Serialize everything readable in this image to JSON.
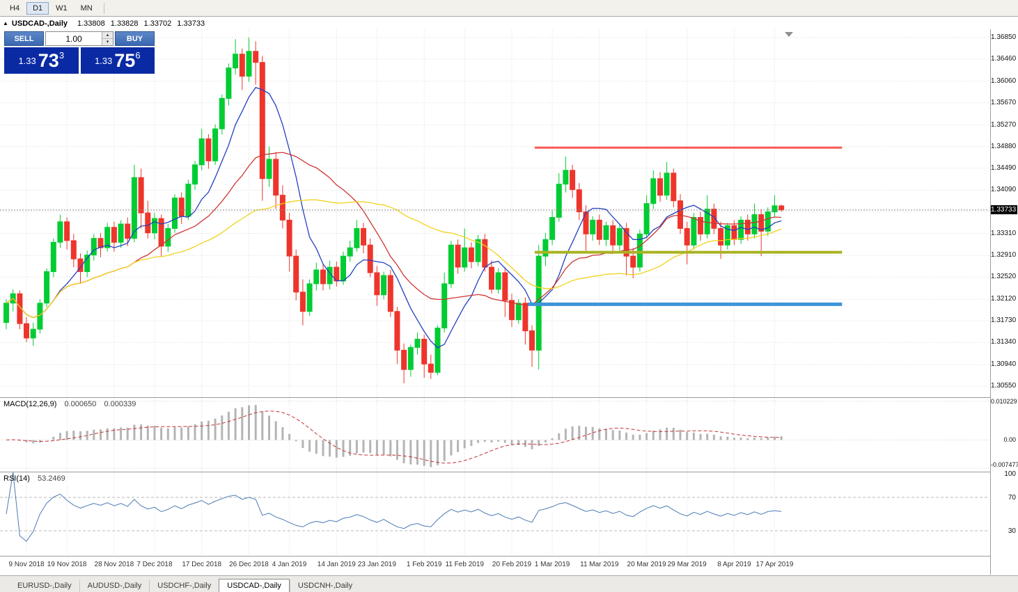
{
  "toolbar": {
    "timeframes": [
      {
        "label": "H4",
        "active": false
      },
      {
        "label": "D1",
        "active": true
      },
      {
        "label": "W1",
        "active": false
      },
      {
        "label": "MN",
        "active": false
      }
    ]
  },
  "window": {
    "symbol": "USDCAD-,Daily",
    "open": "1.33808",
    "high": "1.33828",
    "low": "1.33702",
    "close": "1.33733"
  },
  "trade_panel": {
    "sell_label": "SELL",
    "buy_label": "BUY",
    "volume": "1.00",
    "sell_price": {
      "prefix": "1.33",
      "big": "73",
      "sup": "3"
    },
    "buy_price": {
      "prefix": "1.33",
      "big": "75",
      "sup": "6"
    }
  },
  "chart_data": {
    "type": "candlestick",
    "symbol": "USDCAD-,Daily",
    "current_price": "1.33733",
    "price_axis": {
      "min": 1.3035,
      "max": 1.37,
      "labels": [
        1.3685,
        1.3646,
        1.3606,
        1.3567,
        1.3527,
        1.3488,
        1.3449,
        1.3409,
        1.337,
        1.3331,
        1.3291,
        1.3252,
        1.3212,
        1.3173,
        1.3134,
        1.3094,
        1.3055
      ]
    },
    "date_labels": [
      {
        "index": 3,
        "label": "9 Nov 2018"
      },
      {
        "index": 9,
        "label": "19 Nov 2018"
      },
      {
        "index": 16,
        "label": "28 Nov 2018"
      },
      {
        "index": 22,
        "label": "7 Dec 2018"
      },
      {
        "index": 29,
        "label": "17 Dec 2018"
      },
      {
        "index": 36,
        "label": "26 Dec 2018"
      },
      {
        "index": 42,
        "label": "4 Jan 2019"
      },
      {
        "index": 49,
        "label": "14 Jan 2019"
      },
      {
        "index": 55,
        "label": "23 Jan 2019"
      },
      {
        "index": 62,
        "label": "1 Feb 2019"
      },
      {
        "index": 68,
        "label": "11 Feb 2019"
      },
      {
        "index": 75,
        "label": "20 Feb 2019"
      },
      {
        "index": 81,
        "label": "1 Mar 2019"
      },
      {
        "index": 88,
        "label": "11 Mar 2019"
      },
      {
        "index": 95,
        "label": "20 Mar 2019"
      },
      {
        "index": 101,
        "label": "29 Mar 2019"
      },
      {
        "index": 108,
        "label": "8 Apr 2019"
      },
      {
        "index": 114,
        "label": "17 Apr 2019"
      }
    ],
    "candles": [
      [
        1.317,
        1.3212,
        1.3158,
        1.3205
      ],
      [
        1.3205,
        1.323,
        1.319,
        1.3222
      ],
      [
        1.3222,
        1.3228,
        1.3158,
        1.3168
      ],
      [
        1.3168,
        1.318,
        1.3135,
        1.3142
      ],
      [
        1.3142,
        1.317,
        1.3128,
        1.3158
      ],
      [
        1.3158,
        1.3212,
        1.315,
        1.3205
      ],
      [
        1.3205,
        1.3268,
        1.3198,
        1.3262
      ],
      [
        1.3262,
        1.3322,
        1.3252,
        1.3315
      ],
      [
        1.3315,
        1.3365,
        1.3305,
        1.3352
      ],
      [
        1.3352,
        1.336,
        1.3302,
        1.3318
      ],
      [
        1.3318,
        1.333,
        1.327,
        1.3285
      ],
      [
        1.3285,
        1.3295,
        1.324,
        1.3262
      ],
      [
        1.3262,
        1.33,
        1.3252,
        1.3292
      ],
      [
        1.3292,
        1.333,
        1.3282,
        1.3322
      ],
      [
        1.3322,
        1.3332,
        1.3288,
        1.3305
      ],
      [
        1.3305,
        1.335,
        1.3298,
        1.3342
      ],
      [
        1.3342,
        1.3352,
        1.3298,
        1.3315
      ],
      [
        1.3315,
        1.3355,
        1.3305,
        1.3348
      ],
      [
        1.3348,
        1.336,
        1.3308,
        1.3322
      ],
      [
        1.3322,
        1.3455,
        1.3315,
        1.3432
      ],
      [
        1.3432,
        1.3448,
        1.334,
        1.3368
      ],
      [
        1.3368,
        1.339,
        1.3322,
        1.3332
      ],
      [
        1.3332,
        1.3368,
        1.332,
        1.3358
      ],
      [
        1.3358,
        1.3365,
        1.329,
        1.3308
      ],
      [
        1.3308,
        1.3348,
        1.3298,
        1.334
      ],
      [
        1.334,
        1.3402,
        1.3332,
        1.3395
      ],
      [
        1.3395,
        1.3405,
        1.3348,
        1.3362
      ],
      [
        1.3362,
        1.3428,
        1.3355,
        1.342
      ],
      [
        1.342,
        1.3462,
        1.341,
        1.3455
      ],
      [
        1.3455,
        1.352,
        1.3445,
        1.3502
      ],
      [
        1.3502,
        1.351,
        1.3448,
        1.3462
      ],
      [
        1.3462,
        1.3528,
        1.3455,
        1.352
      ],
      [
        1.352,
        1.3582,
        1.351,
        1.3575
      ],
      [
        1.3575,
        1.3638,
        1.3562,
        1.363
      ],
      [
        1.363,
        1.3682,
        1.3618,
        1.3655
      ],
      [
        1.3655,
        1.3665,
        1.359,
        1.3615
      ],
      [
        1.3615,
        1.3685,
        1.3605,
        1.366
      ],
      [
        1.366,
        1.3678,
        1.36,
        1.364
      ],
      [
        1.364,
        1.3652,
        1.339,
        1.343
      ],
      [
        1.343,
        1.3488,
        1.3415,
        1.3465
      ],
      [
        1.3465,
        1.3478,
        1.3375,
        1.34
      ],
      [
        1.34,
        1.3418,
        1.334,
        1.3355
      ],
      [
        1.3355,
        1.3368,
        1.3262,
        1.329
      ],
      [
        1.329,
        1.3302,
        1.321,
        1.3225
      ],
      [
        1.3225,
        1.3248,
        1.3165,
        1.319
      ],
      [
        1.319,
        1.3248,
        1.3182,
        1.324
      ],
      [
        1.324,
        1.3278,
        1.3228,
        1.3265
      ],
      [
        1.3265,
        1.3275,
        1.3228,
        1.324
      ],
      [
        1.324,
        1.3282,
        1.323,
        1.327
      ],
      [
        1.327,
        1.328,
        1.3235,
        1.3245
      ],
      [
        1.3245,
        1.3298,
        1.3238,
        1.329
      ],
      [
        1.329,
        1.3318,
        1.328,
        1.3305
      ],
      [
        1.3305,
        1.3355,
        1.3298,
        1.334
      ],
      [
        1.334,
        1.335,
        1.3295,
        1.331
      ],
      [
        1.331,
        1.3322,
        1.3252,
        1.326
      ],
      [
        1.326,
        1.3272,
        1.32,
        1.322
      ],
      [
        1.322,
        1.3262,
        1.3212,
        1.3255
      ],
      [
        1.3255,
        1.3265,
        1.318,
        1.319
      ],
      [
        1.319,
        1.3198,
        1.3095,
        1.312
      ],
      [
        1.312,
        1.3132,
        1.306,
        1.3085
      ],
      [
        1.3085,
        1.313,
        1.3072,
        1.3125
      ],
      [
        1.3125,
        1.3152,
        1.3112,
        1.314
      ],
      [
        1.314,
        1.3148,
        1.307,
        1.3095
      ],
      [
        1.3095,
        1.3112,
        1.3068,
        1.308
      ],
      [
        1.308,
        1.3165,
        1.3075,
        1.316
      ],
      [
        1.316,
        1.326,
        1.3152,
        1.324
      ],
      [
        1.324,
        1.3318,
        1.3232,
        1.331
      ],
      [
        1.331,
        1.332,
        1.3258,
        1.327
      ],
      [
        1.327,
        1.334,
        1.3262,
        1.3305
      ],
      [
        1.3305,
        1.3315,
        1.3268,
        1.328
      ],
      [
        1.328,
        1.3328,
        1.3272,
        1.332
      ],
      [
        1.332,
        1.333,
        1.3262,
        1.327
      ],
      [
        1.327,
        1.3282,
        1.3222,
        1.323
      ],
      [
        1.323,
        1.3268,
        1.3222,
        1.326
      ],
      [
        1.326,
        1.327,
        1.318,
        1.321
      ],
      [
        1.321,
        1.3222,
        1.3162,
        1.3175
      ],
      [
        1.3175,
        1.3212,
        1.3168,
        1.3205
      ],
      [
        1.3205,
        1.3215,
        1.313,
        1.3155
      ],
      [
        1.3155,
        1.3165,
        1.309,
        1.312
      ],
      [
        1.312,
        1.331,
        1.3085,
        1.329
      ],
      [
        1.329,
        1.3332,
        1.3272,
        1.332
      ],
      [
        1.332,
        1.3372,
        1.331,
        1.336
      ],
      [
        1.336,
        1.344,
        1.3352,
        1.342
      ],
      [
        1.342,
        1.347,
        1.3405,
        1.3445
      ],
      [
        1.3445,
        1.3455,
        1.3395,
        1.341
      ],
      [
        1.341,
        1.3422,
        1.3355,
        1.337
      ],
      [
        1.337,
        1.3382,
        1.33,
        1.333
      ],
      [
        1.333,
        1.3362,
        1.3318,
        1.3355
      ],
      [
        1.3355,
        1.3365,
        1.331,
        1.332
      ],
      [
        1.332,
        1.3352,
        1.3308,
        1.3345
      ],
      [
        1.3345,
        1.3355,
        1.3298,
        1.331
      ],
      [
        1.331,
        1.3348,
        1.33,
        1.334
      ],
      [
        1.334,
        1.335,
        1.3255,
        1.329
      ],
      [
        1.329,
        1.3305,
        1.325,
        1.327
      ],
      [
        1.327,
        1.3338,
        1.3262,
        1.333
      ],
      [
        1.333,
        1.34,
        1.3322,
        1.3385
      ],
      [
        1.3385,
        1.3445,
        1.3375,
        1.343
      ],
      [
        1.343,
        1.3442,
        1.3388,
        1.34
      ],
      [
        1.34,
        1.346,
        1.3392,
        1.344
      ],
      [
        1.344,
        1.3448,
        1.3378,
        1.339
      ],
      [
        1.339,
        1.3402,
        1.333,
        1.334
      ],
      [
        1.334,
        1.3352,
        1.3275,
        1.331
      ],
      [
        1.331,
        1.3368,
        1.3302,
        1.336
      ],
      [
        1.336,
        1.337,
        1.3318,
        1.333
      ],
      [
        1.333,
        1.34,
        1.3322,
        1.3375
      ],
      [
        1.3375,
        1.3385,
        1.333,
        1.334
      ],
      [
        1.334,
        1.3352,
        1.3285,
        1.331
      ],
      [
        1.331,
        1.335,
        1.3302,
        1.3345
      ],
      [
        1.3345,
        1.3355,
        1.331,
        1.332
      ],
      [
        1.332,
        1.3362,
        1.3312,
        1.3355
      ],
      [
        1.3355,
        1.3365,
        1.3318,
        1.333
      ],
      [
        1.333,
        1.3385,
        1.3322,
        1.3365
      ],
      [
        1.3365,
        1.3375,
        1.329,
        1.3335
      ],
      [
        1.3335,
        1.3378,
        1.3326,
        1.337
      ],
      [
        1.337,
        1.34,
        1.336,
        1.3381
      ],
      [
        1.33808,
        1.33828,
        1.33702,
        1.33733
      ]
    ],
    "moving_averages": [
      {
        "period": 8,
        "color": "#2340c0"
      },
      {
        "period": 20,
        "color": "#cf3434"
      },
      {
        "period": 40,
        "color": "#f2d21c"
      }
    ],
    "hlines": [
      {
        "name": "resistance-line",
        "price": 1.3486,
        "from": 78.4,
        "to": 124,
        "width": 3,
        "color": "#fa5b54"
      },
      {
        "name": "support-line",
        "price": 1.3297,
        "from": 78.4,
        "to": 124,
        "width": 4,
        "color": "#a9b322"
      },
      {
        "name": "demand-line",
        "price": 1.3203,
        "from": 77.4,
        "to": 124,
        "width": 5,
        "color": "#3d95d8"
      }
    ],
    "colors": {
      "up": "#00cc33",
      "down": "#ee352c",
      "grid": "#dcdcdc",
      "hist": "#b4b4b4",
      "signal": "#c23535",
      "rsi": "#4a7ab5",
      "price_line": "#8a8a8a"
    },
    "macd": {
      "label": "MACD(12,26,9)",
      "value_main": "0.000650",
      "value_signal": "0.000339",
      "fast": 12,
      "slow": 26,
      "signal": 9,
      "axis_labels": [
        {
          "label": "0.010229"
        },
        {
          "label": "0.00"
        },
        {
          "label": "-0.007477"
        }
      ]
    },
    "rsi": {
      "label": "RSI(14)",
      "value": "53.2469",
      "period": 14,
      "levels": [
        70,
        30
      ],
      "axis_labels": [
        {
          "label": "100"
        },
        {
          "label": "70"
        },
        {
          "label": "30"
        }
      ]
    }
  },
  "tabs": [
    {
      "label": "EURUSD-,Daily",
      "active": false
    },
    {
      "label": "AUDUSD-,Daily",
      "active": false
    },
    {
      "label": "USDCHF-,Daily",
      "active": false
    },
    {
      "label": "USDCAD-,Daily",
      "active": true
    },
    {
      "label": "USDCNH-,Daily",
      "active": false
    }
  ]
}
